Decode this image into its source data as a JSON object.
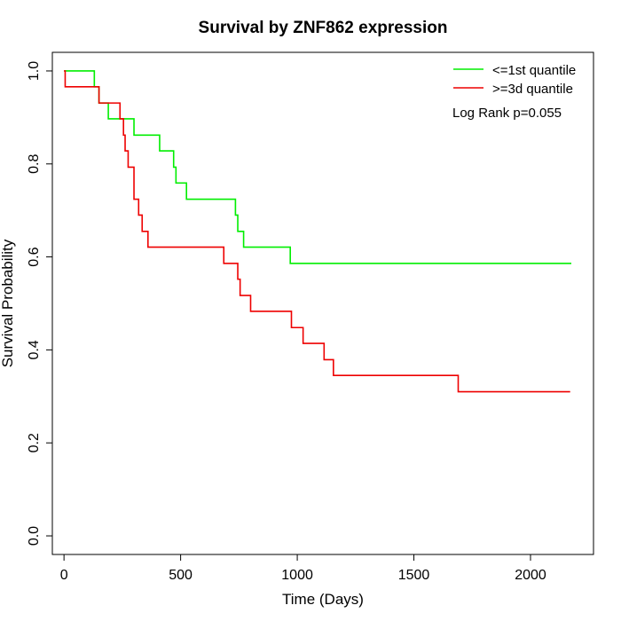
{
  "chart_data": {
    "type": "line",
    "title": "Survival by ZNF862 expression",
    "xlabel": "Time (Days)",
    "ylabel": "Survival Probability",
    "xlim": [
      -50,
      2270
    ],
    "ylim": [
      -0.04,
      1.04
    ],
    "xticks": [
      0,
      500,
      1000,
      1500,
      2000
    ],
    "yticks": [
      0.0,
      0.2,
      0.4,
      0.6,
      0.8,
      1.0
    ],
    "xtick_labels": [
      "0",
      "500",
      "1000",
      "1500",
      "2000"
    ],
    "ytick_labels": [
      "0.0",
      "0.2",
      "0.4",
      "0.6",
      "0.8",
      "1.0"
    ],
    "legend_position": "top-right",
    "annotation": "Log Rank p=0.055",
    "grid": false,
    "series": [
      {
        "name": "<=1st quantile",
        "color": "#00ee00",
        "step": true,
        "x": [
          0,
          130,
          150,
          190,
          300,
          410,
          470,
          480,
          525,
          735,
          745,
          770,
          970,
          2175
        ],
        "y": [
          1.0,
          0.966,
          0.931,
          0.897,
          0.862,
          0.828,
          0.793,
          0.759,
          0.724,
          0.69,
          0.655,
          0.621,
          0.586,
          0.586
        ]
      },
      {
        "name": ">=3d quantile",
        "color": "#ee0000",
        "step": true,
        "x": [
          0,
          5,
          150,
          240,
          255,
          262,
          275,
          300,
          320,
          335,
          360,
          685,
          745,
          755,
          800,
          975,
          1025,
          1115,
          1155,
          1690,
          2170
        ],
        "y": [
          1.0,
          0.966,
          0.931,
          0.897,
          0.862,
          0.828,
          0.793,
          0.724,
          0.69,
          0.655,
          0.621,
          0.586,
          0.552,
          0.517,
          0.483,
          0.448,
          0.414,
          0.379,
          0.345,
          0.31,
          0.31
        ]
      }
    ]
  }
}
